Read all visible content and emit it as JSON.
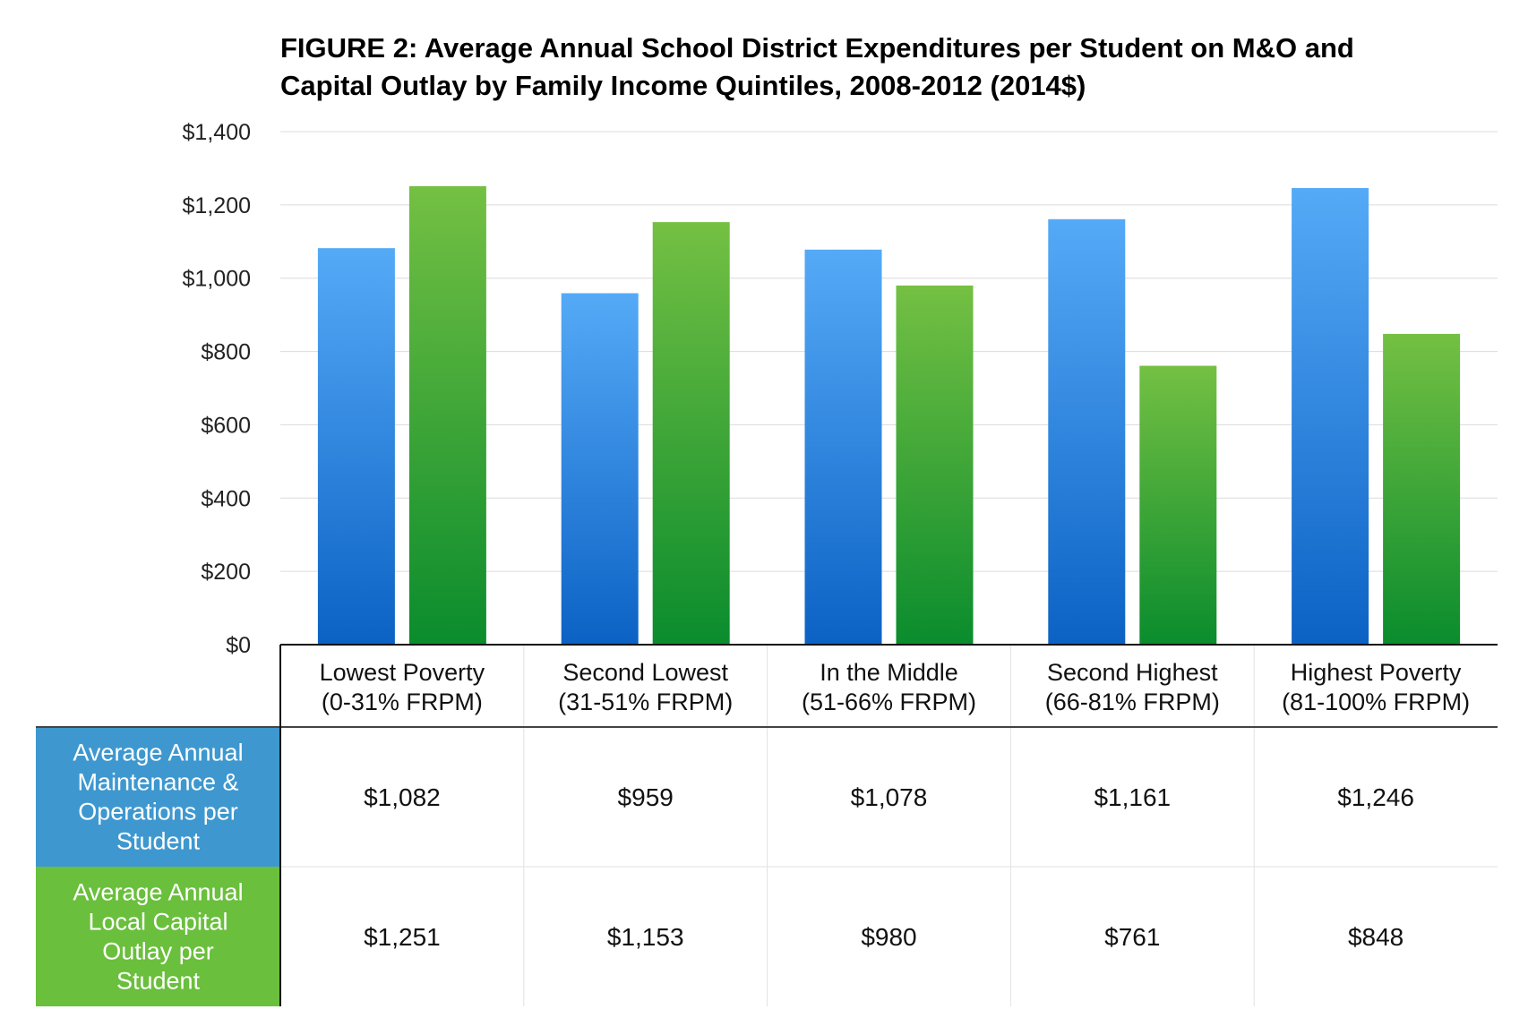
{
  "chart_data": {
    "type": "bar",
    "title_lines": [
      "FIGURE 2: Average Annual School District Expenditures per Student on M&O and",
      "Capital Outlay by Family Income Quintiles, 2008-2012 (2014$)"
    ],
    "categories": [
      [
        "Lowest Poverty",
        "(0-31% FRPM)"
      ],
      [
        "Second Lowest",
        "(31-51% FRPM)"
      ],
      [
        "In the Middle",
        "(51-66% FRPM)"
      ],
      [
        "Second Highest",
        "(66-81% FRPM)"
      ],
      [
        "Highest Poverty",
        "(81-100% FRPM)"
      ]
    ],
    "y_ticks": [
      "$0",
      "$200",
      "$400",
      "$600",
      "$800",
      "$1,000",
      "$1,200",
      "$1,400"
    ],
    "ylim": [
      0,
      1400
    ],
    "grid": true,
    "series": [
      {
        "name_lines": [
          "Average Annual",
          "Maintenance &",
          "Operations per",
          "Student"
        ],
        "values": [
          1082,
          959,
          1078,
          1161,
          1246
        ],
        "labels": [
          "$1,082",
          "$959",
          "$1,078",
          "$1,161",
          "$1,246"
        ],
        "color_top": "#55aaf7",
        "color_bottom": "#0c62c4",
        "header_color": "#3e98cf"
      },
      {
        "name_lines": [
          "Average Annual",
          "Local Capital",
          "Outlay per",
          "Student"
        ],
        "values": [
          1251,
          1153,
          980,
          761,
          848
        ],
        "labels": [
          "$1,251",
          "$1,153",
          "$980",
          "$761",
          "$848"
        ],
        "color_top": "#74c043",
        "color_bottom": "#0a8c2d",
        "header_color": "#6abf3c"
      }
    ]
  }
}
